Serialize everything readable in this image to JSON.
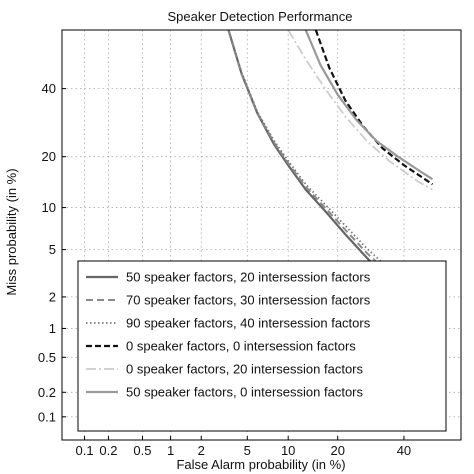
{
  "chart_data": {
    "type": "line",
    "title": "Speaker Detection Performance",
    "xlabel": "False Alarm probability (in %)",
    "ylabel": "Miss probability (in %)",
    "scale": "probit",
    "xlim": [
      0.05,
      60
    ],
    "ylim": [
      0.05,
      60
    ],
    "grid": true,
    "legend_position": "lower-left",
    "xticks": [
      {
        "v": 0.1,
        "label": "0.1"
      },
      {
        "v": 0.2,
        "label": "0.2"
      },
      {
        "v": 0.5,
        "label": "0.5"
      },
      {
        "v": 1,
        "label": "1"
      },
      {
        "v": 2,
        "label": "2"
      },
      {
        "v": 5,
        "label": "5"
      },
      {
        "v": 10,
        "label": "10"
      },
      {
        "v": 20,
        "label": "20"
      },
      {
        "v": 40,
        "label": "40"
      }
    ],
    "yticks": [
      {
        "v": 0.1,
        "label": "0.1"
      },
      {
        "v": 0.2,
        "label": "0.2"
      },
      {
        "v": 0.5,
        "label": "0.5"
      },
      {
        "v": 1,
        "label": "1"
      },
      {
        "v": 2,
        "label": "2"
      },
      {
        "v": 5,
        "label": "5"
      },
      {
        "v": 10,
        "label": "10"
      },
      {
        "v": 20,
        "label": "20"
      },
      {
        "v": 40,
        "label": "40"
      }
    ],
    "series": [
      {
        "name": "50 speaker factors, 20 intersession factors",
        "color": "#666666",
        "dash": "",
        "width": 2.2,
        "points": [
          [
            3.5,
            60
          ],
          [
            4.5,
            45
          ],
          [
            6,
            32
          ],
          [
            8,
            23
          ],
          [
            10,
            18
          ],
          [
            13,
            13
          ],
          [
            17,
            9.5
          ],
          [
            22,
            6.5
          ],
          [
            28,
            4.3
          ],
          [
            35,
            2.9
          ],
          [
            42,
            2.0
          ]
        ]
      },
      {
        "name": "70 speaker factors, 30 intersession factors",
        "color": "#8a8a8a",
        "dash": "7,4",
        "width": 2.0,
        "points": [
          [
            3.5,
            60
          ],
          [
            4.5,
            45
          ],
          [
            6,
            32
          ],
          [
            8,
            23.5
          ],
          [
            10,
            18.5
          ],
          [
            13,
            13.5
          ],
          [
            17,
            10
          ],
          [
            22,
            7
          ],
          [
            28,
            4.7
          ],
          [
            35,
            3.2
          ],
          [
            42,
            2.2
          ]
        ]
      },
      {
        "name": "90 speaker factors, 40 intersession factors",
        "color": "#777777",
        "dash": "1.5,2.5",
        "width": 1.8,
        "points": [
          [
            3.5,
            60
          ],
          [
            4.5,
            45.5
          ],
          [
            6,
            32.5
          ],
          [
            8,
            24
          ],
          [
            10,
            19
          ],
          [
            13,
            14
          ],
          [
            17,
            10.5
          ],
          [
            22,
            7.5
          ],
          [
            28,
            5.1
          ],
          [
            35,
            3.5
          ],
          [
            42,
            2.4
          ]
        ]
      },
      {
        "name": "0 speaker factors, 0 intersession factors",
        "color": "#111111",
        "dash": "6,3",
        "width": 2.2,
        "points": [
          [
            15,
            60
          ],
          [
            18,
            47
          ],
          [
            22,
            36
          ],
          [
            27,
            28
          ],
          [
            33,
            22
          ],
          [
            40,
            18
          ],
          [
            50,
            14
          ]
        ]
      },
      {
        "name": "0 speaker factors, 20 intersession factors",
        "color": "#cccccc",
        "dash": "10,3,2,3",
        "width": 1.8,
        "points": [
          [
            10,
            60
          ],
          [
            13,
            50
          ],
          [
            17,
            40
          ],
          [
            22,
            31
          ],
          [
            28,
            24
          ],
          [
            35,
            19
          ],
          [
            45,
            14.5
          ],
          [
            50,
            13
          ]
        ]
      },
      {
        "name": "50 speaker factors, 0 intersession factors",
        "color": "#999999",
        "dash": "",
        "width": 2.2,
        "points": [
          [
            13,
            60
          ],
          [
            16,
            48
          ],
          [
            20,
            38
          ],
          [
            25,
            30
          ],
          [
            31,
            24
          ],
          [
            38,
            20
          ],
          [
            46,
            16.5
          ],
          [
            50,
            15
          ]
        ]
      }
    ]
  }
}
